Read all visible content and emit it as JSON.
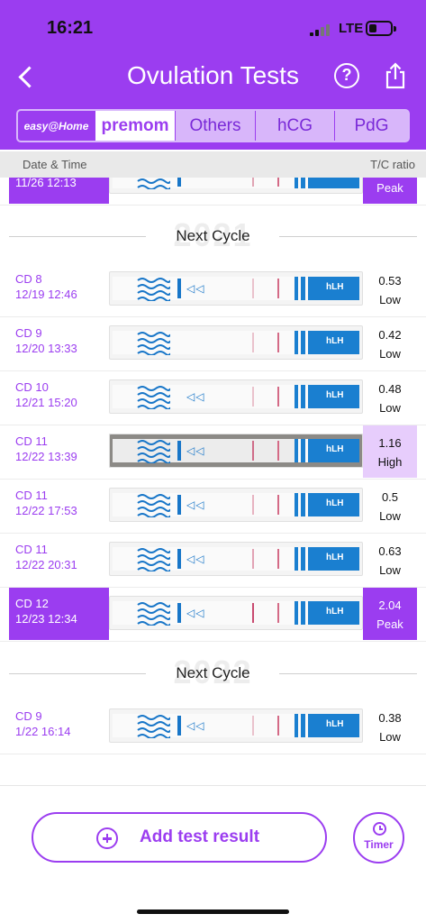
{
  "status_bar": {
    "time": "16:21",
    "network": "LTE",
    "icons": [
      "signal-icon",
      "battery-icon"
    ]
  },
  "nav": {
    "title": "Ovulation Tests",
    "back_icon": "chevron-left-icon",
    "help_label": "?",
    "share_icon": "share-icon"
  },
  "brand_tabs": [
    {
      "label": "easy@Home",
      "selected": false
    },
    {
      "label": "premom",
      "selected": true
    },
    {
      "label": "Others",
      "selected": false
    },
    {
      "label": "hCG",
      "selected": false
    },
    {
      "label": "PdG",
      "selected": false
    }
  ],
  "columns": {
    "date": "Date & Time",
    "ratio": "T/C ratio"
  },
  "partial_row": {
    "datetime": "11/26 12:13",
    "level": "Peak"
  },
  "cycles": [
    {
      "watermark": "2021",
      "label": "Next Cycle",
      "rows": [
        {
          "cd": "CD 8",
          "datetime": "12/19 12:46",
          "ratio": "0.53",
          "level": "Low"
        },
        {
          "cd": "CD 9",
          "datetime": "12/20 13:33",
          "ratio": "0.42",
          "level": "Low"
        },
        {
          "cd": "CD 10",
          "datetime": "12/21 15:20",
          "ratio": "0.48",
          "level": "Low"
        },
        {
          "cd": "CD 11",
          "datetime": "12/22 13:39",
          "ratio": "1.16",
          "level": "High"
        },
        {
          "cd": "CD 11",
          "datetime": "12/22 17:53",
          "ratio": "0.5",
          "level": "Low"
        },
        {
          "cd": "CD 11",
          "datetime": "12/22 20:31",
          "ratio": "0.63",
          "level": "Low"
        },
        {
          "cd": "CD 12",
          "datetime": "12/23 12:34",
          "ratio": "2.04",
          "level": "Peak"
        }
      ]
    },
    {
      "watermark": "2022",
      "label": "Next Cycle",
      "rows": [
        {
          "cd": "CD 9",
          "datetime": "1/22 16:14",
          "ratio": "0.38",
          "level": "Low"
        }
      ]
    }
  ],
  "strip": {
    "label": "hLH",
    "arrows": "◁◁"
  },
  "bottom": {
    "add_label": "Add test result",
    "timer_label": "Timer"
  },
  "colors": {
    "accent": "#9b3df0",
    "high_bg": "#e7cdfc",
    "strip_blue": "#1a7fd0"
  }
}
